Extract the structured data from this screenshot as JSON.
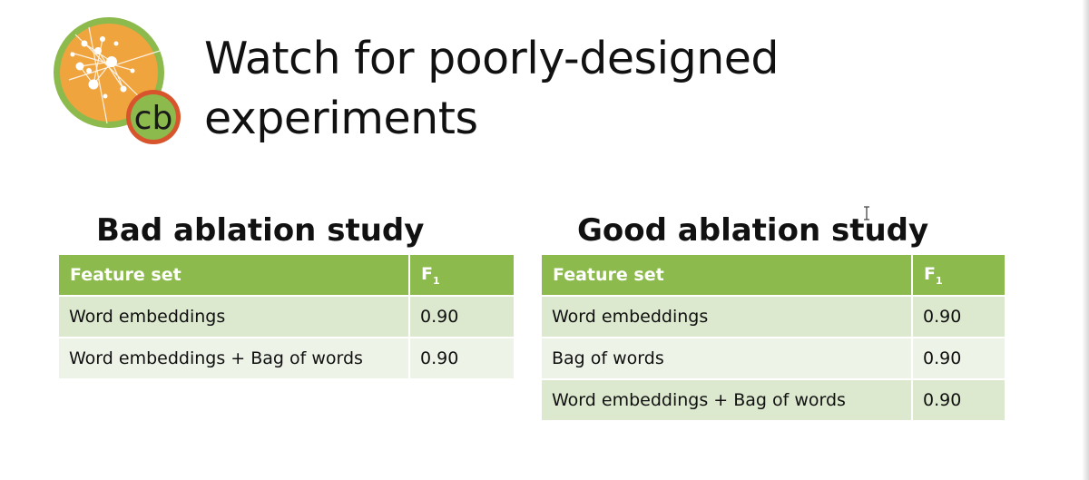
{
  "slide": {
    "title_line1": "Watch for poorly-designed",
    "title_line2": "experiments",
    "logo_text": "cb"
  },
  "bad_study": {
    "heading": "Bad ablation study",
    "header_feature": "Feature set",
    "header_metric": "F",
    "header_metric_sub": "1",
    "rows": [
      {
        "feature": "Word embeddings",
        "f1": "0.90"
      },
      {
        "feature": "Word embeddings + Bag of words",
        "f1": "0.90"
      }
    ]
  },
  "good_study": {
    "heading": "Good ablation study",
    "header_feature": "Feature set",
    "header_metric": "F",
    "header_metric_sub": "1",
    "rows": [
      {
        "feature": "Word embeddings",
        "f1": "0.90"
      },
      {
        "feature": "Bag of words",
        "f1": "0.90"
      },
      {
        "feature": "Word embeddings + Bag of words",
        "f1": "0.90"
      }
    ]
  },
  "colors": {
    "table_header": "#8cba4c",
    "row_odd": "#dce9cf",
    "row_even": "#edf3e7",
    "logo_orange": "#f0a43e",
    "logo_green": "#8cba4c",
    "logo_red": "#d8542d"
  },
  "icons": {
    "logo": "network-graph-logo-icon",
    "cursor": "text-cursor-icon"
  }
}
